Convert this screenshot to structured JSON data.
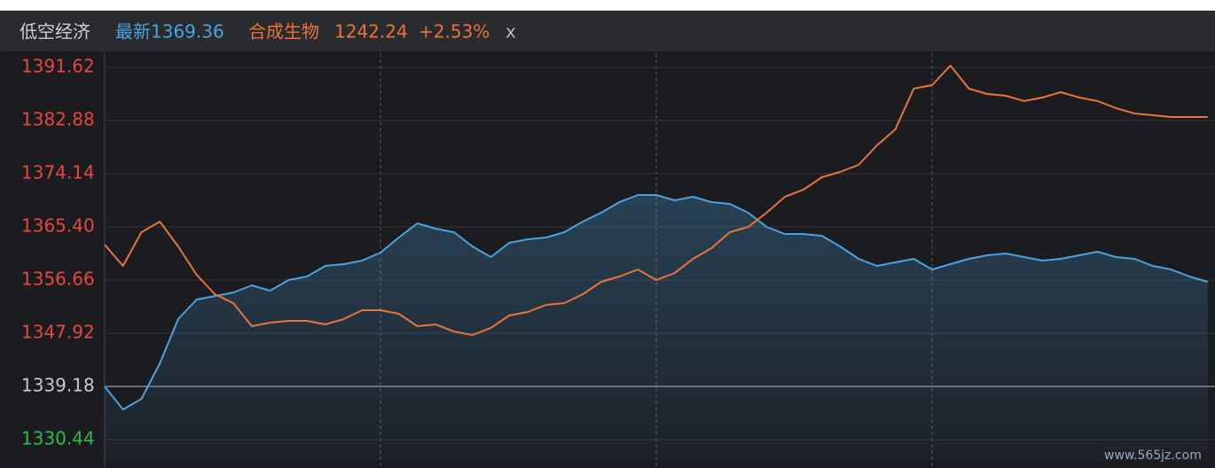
{
  "chart_data": {
    "type": "line",
    "header": {
      "latest": "最新1369.36",
      "compare_price": "1242.24",
      "compare_change": "+2.53%",
      "close": "x"
    },
    "watermark": "www.565jz.com",
    "categories": [
      null,
      null,
      null,
      null,
      null,
      null,
      null,
      null,
      null,
      null,
      null,
      null,
      null,
      null,
      null,
      null,
      null,
      null,
      null,
      null,
      null,
      null,
      null,
      null,
      null,
      null,
      null,
      null,
      null,
      null,
      null,
      null,
      null,
      null,
      null,
      null,
      null,
      null,
      null,
      null,
      null,
      null,
      null,
      null,
      null,
      null,
      null,
      null,
      null,
      null,
      null,
      null,
      null,
      null,
      null,
      null,
      null,
      null,
      null,
      null,
      null
    ],
    "series": [
      {
        "name": "低空经济",
        "color": "#4aa3df",
        "fill": true,
        "values": [
          1339.18,
          1335.39,
          1337.14,
          1342.97,
          1350.25,
          1353.45,
          1354.04,
          1354.62,
          1355.78,
          1354.91,
          1356.66,
          1357.24,
          1358.99,
          1359.28,
          1359.86,
          1361.17,
          1363.65,
          1365.98,
          1365.11,
          1364.52,
          1362.19,
          1360.45,
          1362.78,
          1363.36,
          1363.65,
          1364.52,
          1366.27,
          1367.73,
          1369.48,
          1370.64,
          1370.64,
          1369.77,
          1370.35,
          1369.48,
          1369.19,
          1367.73,
          1365.4,
          1364.23,
          1364.23,
          1363.94,
          1362.19,
          1360.15,
          1358.99,
          1359.57,
          1360.15,
          1358.41,
          1359.28,
          1360.15,
          1360.74,
          1361.03,
          1360.45,
          1359.86,
          1360.15,
          1360.74,
          1361.32,
          1360.45,
          1360.15,
          1358.99,
          1358.41,
          1357.24,
          1356.37
        ]
      },
      {
        "name": "合成生物",
        "color": "#e8743b",
        "fill": false,
        "values": [
          1362.49,
          1358.99,
          1364.52,
          1366.27,
          1362.19,
          1357.53,
          1354.33,
          1352.87,
          1349.08,
          1349.67,
          1349.96,
          1349.96,
          1349.37,
          1350.25,
          1351.71,
          1351.71,
          1351.12,
          1349.08,
          1349.37,
          1348.21,
          1347.63,
          1348.79,
          1350.83,
          1351.41,
          1352.58,
          1352.87,
          1354.33,
          1356.37,
          1357.24,
          1358.41,
          1356.66,
          1357.82,
          1360.15,
          1361.9,
          1364.52,
          1365.4,
          1367.73,
          1370.35,
          1371.52,
          1373.56,
          1374.43,
          1375.6,
          1378.8,
          1381.42,
          1388.12,
          1388.71,
          1391.91,
          1388.12,
          1387.25,
          1386.96,
          1386.08,
          1386.67,
          1387.54,
          1386.67,
          1386.08,
          1384.92,
          1384.04,
          1383.75,
          1383.46,
          1383.46,
          1383.46
        ]
      }
    ],
    "ylim": [
      1326.94,
      1393.95
    ],
    "yticks": [
      1391.62,
      1382.88,
      1374.14,
      {
        "value": 1365.4,
        "label": "1365.40"
      },
      1356.66,
      1347.92,
      1339.18,
      1330.44
    ],
    "grid": true,
    "up_color": "#e8463c",
    "down_color": "#2fb94a",
    "flat_color": "#c8c8c8"
  }
}
